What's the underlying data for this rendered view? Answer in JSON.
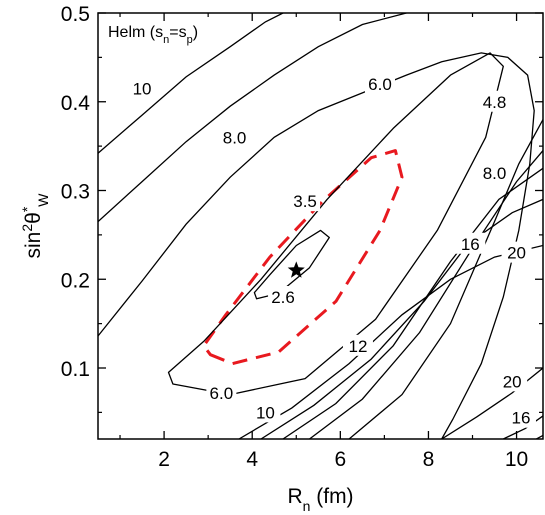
{
  "chart_data": {
    "type": "contour",
    "title": "",
    "annotation": {
      "main": "Helm (s",
      "sub1": "n",
      "mid": "=s",
      "sub2": "p",
      "close": ")"
    },
    "xlabel": {
      "main": "R",
      "sub": "n",
      "rest": " (fm)"
    },
    "ylabel": {
      "main": "sin",
      "sup1": "2",
      "theta": "θ",
      "sup2": "*",
      "sub": "W"
    },
    "xlim": [
      0.5,
      10.6
    ],
    "ylim": [
      0.02,
      0.5
    ],
    "xticks": [
      {
        "value": 2,
        "label": "2"
      },
      {
        "value": 4,
        "label": "4"
      },
      {
        "value": 6,
        "label": "6"
      },
      {
        "value": 8,
        "label": "8"
      },
      {
        "value": 10,
        "label": "10"
      }
    ],
    "yticks": [
      {
        "value": 0.1,
        "label": "0.1"
      },
      {
        "value": 0.2,
        "label": "0.2"
      },
      {
        "value": 0.3,
        "label": "0.3"
      },
      {
        "value": 0.4,
        "label": "0.4"
      },
      {
        "value": 0.5,
        "label": "0.5"
      }
    ],
    "minimum": {
      "x": 5.0,
      "y": 0.21,
      "marker": "star"
    },
    "level_labels": [
      {
        "text": "10",
        "x": 1.5,
        "y": 0.415
      },
      {
        "text": "8.0",
        "x": 3.6,
        "y": 0.36
      },
      {
        "text": "6.0",
        "x": 6.9,
        "y": 0.42
      },
      {
        "text": "4.8",
        "x": 9.5,
        "y": 0.4
      },
      {
        "text": "8.0",
        "x": 9.5,
        "y": 0.32
      },
      {
        "text": "3.5",
        "x": 5.2,
        "y": 0.288
      },
      {
        "text": "2.6",
        "x": 4.7,
        "y": 0.18
      },
      {
        "text": "16",
        "x": 8.95,
        "y": 0.24
      },
      {
        "text": "20",
        "x": 10.0,
        "y": 0.23
      },
      {
        "text": "12",
        "x": 6.4,
        "y": 0.125
      },
      {
        "text": "6.0",
        "x": 3.3,
        "y": 0.072
      },
      {
        "text": "10",
        "x": 4.3,
        "y": 0.05
      },
      {
        "text": "20",
        "x": 9.9,
        "y": 0.085
      },
      {
        "text": "16",
        "x": 10.1,
        "y": 0.044
      }
    ],
    "closed_contours": [
      {
        "level": "2.6",
        "style": "solid",
        "color": "#000000",
        "center": [
          5.0,
          0.21
        ],
        "points": [
          [
            4.1,
            0.178
          ],
          [
            4.6,
            0.184
          ],
          [
            5.3,
            0.213
          ],
          [
            5.75,
            0.247
          ],
          [
            5.55,
            0.255
          ],
          [
            5.0,
            0.238
          ],
          [
            4.4,
            0.205
          ],
          [
            4.05,
            0.185
          ]
        ]
      },
      {
        "level": "3.5",
        "style": "dashed",
        "color": "#e8191f",
        "points": [
          [
            3.05,
            0.115
          ],
          [
            3.55,
            0.105
          ],
          [
            4.6,
            0.118
          ],
          [
            5.9,
            0.175
          ],
          [
            6.9,
            0.255
          ],
          [
            7.4,
            0.315
          ],
          [
            7.25,
            0.345
          ],
          [
            6.7,
            0.337
          ],
          [
            5.6,
            0.288
          ],
          [
            4.4,
            0.225
          ],
          [
            3.4,
            0.16
          ],
          [
            2.9,
            0.125
          ]
        ]
      },
      {
        "level": "4.8",
        "style": "solid",
        "color": "#000000",
        "points": [
          [
            2.2,
            0.082
          ],
          [
            3.5,
            0.07
          ],
          [
            5.2,
            0.088
          ],
          [
            6.8,
            0.155
          ],
          [
            8.2,
            0.255
          ],
          [
            9.3,
            0.36
          ],
          [
            9.7,
            0.44
          ],
          [
            9.4,
            0.455
          ],
          [
            8.5,
            0.43
          ],
          [
            7.2,
            0.37
          ],
          [
            5.7,
            0.29
          ],
          [
            4.2,
            0.2
          ],
          [
            2.9,
            0.13
          ],
          [
            2.1,
            0.095
          ]
        ]
      }
    ],
    "open_contours": [
      {
        "level": "6.0",
        "points": [
          [
            0.5,
            0.136
          ],
          [
            1.5,
            0.198
          ],
          [
            2.5,
            0.262
          ],
          [
            3.5,
            0.315
          ],
          [
            4.5,
            0.36
          ],
          [
            5.5,
            0.39
          ],
          [
            6.5,
            0.41
          ],
          [
            7.5,
            0.43
          ],
          [
            8.3,
            0.445
          ],
          [
            9.2,
            0.455
          ],
          [
            9.8,
            0.45
          ],
          [
            10.25,
            0.43
          ],
          [
            10.4,
            0.39
          ],
          [
            10.3,
            0.33
          ],
          [
            10.05,
            0.255
          ],
          [
            9.7,
            0.18
          ],
          [
            9.2,
            0.105
          ],
          [
            8.55,
            0.042
          ],
          [
            8.3,
            0.02
          ]
        ]
      },
      {
        "level": "8.0",
        "points": [
          [
            0.5,
            0.265
          ],
          [
            1.5,
            0.31
          ],
          [
            2.5,
            0.355
          ],
          [
            3.5,
            0.395
          ],
          [
            4.5,
            0.43
          ],
          [
            5.5,
            0.462
          ],
          [
            6.5,
            0.487
          ],
          [
            7.5,
            0.5
          ]
        ]
      },
      {
        "level": "8.0",
        "points": [
          [
            6.2,
            0.02
          ],
          [
            7.4,
            0.07
          ],
          [
            8.5,
            0.15
          ],
          [
            9.5,
            0.265
          ],
          [
            10.05,
            0.33
          ],
          [
            10.6,
            0.38
          ]
        ]
      },
      {
        "level": "10",
        "points": [
          [
            0.5,
            0.342
          ],
          [
            1.5,
            0.385
          ],
          [
            2.5,
            0.428
          ],
          [
            3.5,
            0.462
          ],
          [
            4.3,
            0.49
          ],
          [
            4.7,
            0.5
          ]
        ]
      },
      {
        "level": "10",
        "points": [
          [
            5.3,
            0.02
          ],
          [
            6.5,
            0.065
          ],
          [
            7.8,
            0.14
          ],
          [
            9.0,
            0.235
          ],
          [
            10.0,
            0.31
          ],
          [
            10.6,
            0.345
          ]
        ]
      },
      {
        "level": "12",
        "points": [
          [
            4.7,
            0.02
          ],
          [
            5.9,
            0.06
          ],
          [
            7.2,
            0.125
          ],
          [
            8.5,
            0.22
          ],
          [
            9.6,
            0.29
          ],
          [
            10.6,
            0.325
          ]
        ]
      },
      {
        "level": "16",
        "points": [
          [
            4.2,
            0.02
          ],
          [
            5.4,
            0.058
          ],
          [
            6.7,
            0.11
          ],
          [
            7.9,
            0.175
          ],
          [
            8.9,
            0.24
          ],
          [
            9.9,
            0.275
          ],
          [
            10.6,
            0.29
          ]
        ]
      },
      {
        "level": "20",
        "points": [
          [
            3.7,
            0.02
          ],
          [
            4.9,
            0.055
          ],
          [
            6.2,
            0.105
          ],
          [
            7.4,
            0.16
          ],
          [
            8.5,
            0.2
          ],
          [
            9.5,
            0.225
          ],
          [
            10.6,
            0.238
          ]
        ]
      },
      {
        "level": "20",
        "points": [
          [
            8.3,
            0.02
          ],
          [
            9.1,
            0.045
          ],
          [
            9.9,
            0.072
          ],
          [
            10.6,
            0.1
          ]
        ]
      },
      {
        "level": "16",
        "points": [
          [
            9.7,
            0.02
          ],
          [
            10.2,
            0.032
          ],
          [
            10.6,
            0.046
          ]
        ]
      },
      {
        "level": "4.8",
        "points": [
          [
            10.45,
            0.02
          ],
          [
            10.6,
            0.024
          ]
        ]
      }
    ]
  }
}
